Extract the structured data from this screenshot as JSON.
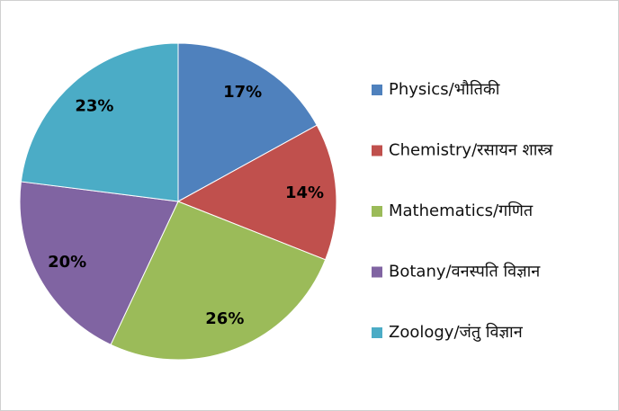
{
  "chart_data": {
    "type": "pie",
    "categories": [
      "Physics/भौतिकी",
      "Chemistry/रसायन  शास्त्र",
      "Mathematics/गणित",
      "Botany/वनस्पति  विज्ञान",
      "Zoology/जंतु  विज्ञान"
    ],
    "values": [
      17,
      14,
      26,
      20,
      23
    ],
    "value_labels": [
      "17%",
      "14%",
      "26%",
      "20%",
      "23%"
    ],
    "colors": [
      "#4f81bd",
      "#c0504d",
      "#9bbb59",
      "#8064a2",
      "#4bacc6"
    ],
    "legend": "right"
  }
}
